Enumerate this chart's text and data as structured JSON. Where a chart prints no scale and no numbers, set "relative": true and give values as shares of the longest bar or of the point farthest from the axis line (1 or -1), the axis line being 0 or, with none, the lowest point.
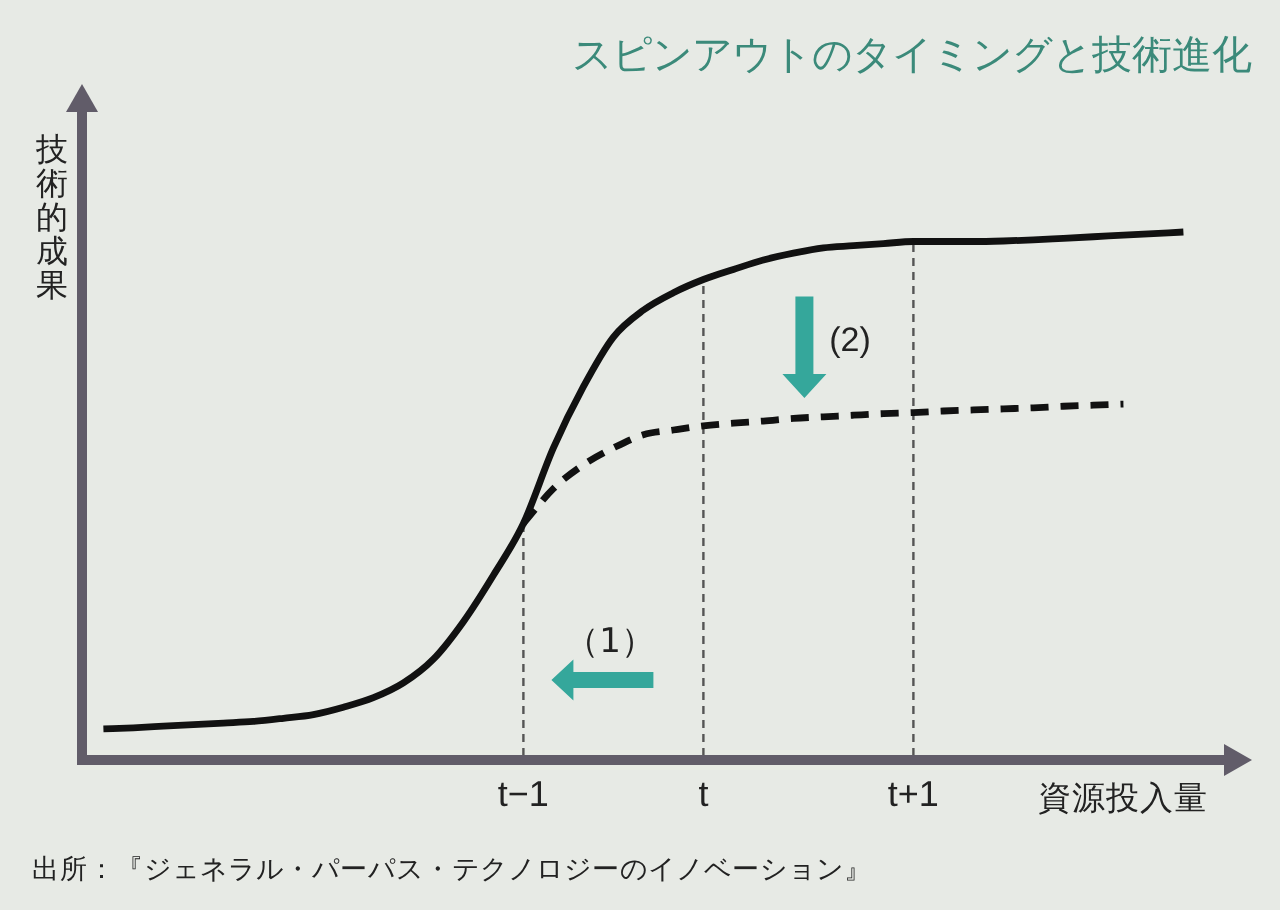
{
  "chart_data": {
    "type": "line",
    "title": "スピンアウトのタイミングと技術進化",
    "xlabel": "資源投入量",
    "ylabel": "技術的成果",
    "relative": true,
    "categories": [
      null,
      null,
      null,
      null,
      null,
      null,
      null,
      null,
      null,
      null,
      null,
      null,
      null,
      null,
      "t−1",
      null,
      null,
      null,
      null,
      null,
      "t",
      null,
      null,
      null,
      null,
      null,
      null,
      "t+1",
      null,
      null,
      null,
      null,
      null,
      null,
      null,
      null,
      null
    ],
    "series": [
      {
        "color": "#111111",
        "line_style": "solid",
        "values": [
          0.059,
          0.061,
          0.064,
          0.067,
          0.07,
          0.073,
          0.079,
          0.086,
          0.1,
          0.118,
          0.146,
          0.191,
          0.262,
          0.35,
          0.448,
          0.591,
          0.707,
          0.801,
          0.852,
          0.885,
          0.91,
          0.929,
          0.947,
          0.96,
          0.97,
          0.974,
          0.978,
          0.982,
          0.982,
          0.982,
          0.983,
          0.985,
          0.988,
          0.991,
          0.994,
          0.997,
          1
        ]
      },
      {
        "color": "#111111",
        "line_style": "dashed",
        "values": [
          null,
          null,
          null,
          null,
          null,
          null,
          null,
          null,
          null,
          null,
          null,
          null,
          null,
          null,
          0.448,
          0.514,
          0.559,
          0.591,
          0.616,
          0.625,
          0.633,
          0.638,
          0.642,
          0.647,
          0.65,
          0.653,
          0.656,
          0.658,
          0.661,
          0.663,
          0.665,
          0.667,
          0.67,
          0.672,
          0.674,
          null,
          null
        ]
      }
    ],
    "ref_lines": [
      {
        "axis": "x",
        "value": "t−1",
        "color": "#555555",
        "line_style": "dashed"
      },
      {
        "axis": "x",
        "value": "t",
        "color": "#555555",
        "line_style": "dashed"
      },
      {
        "axis": "x",
        "value": "t+1",
        "color": "#555555",
        "line_style": "dashed"
      }
    ],
    "annotations": [
      "（1）",
      "(2)",
      "出所：『ジェネラル・パーパス・テクノロジーのイノベーション』"
    ]
  }
}
